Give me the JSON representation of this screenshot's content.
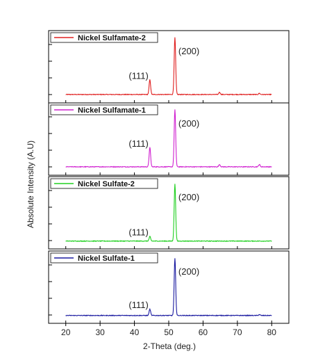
{
  "chart_data": {
    "type": "line",
    "xlabel": "2-Theta (deg.)",
    "ylabel": "Absolute Intensity (A.U)",
    "xlim": [
      15,
      85
    ],
    "x_ticks": [
      20,
      30,
      40,
      50,
      60,
      70,
      80
    ],
    "grid": false,
    "legend_placement": "top-left",
    "panels": [
      {
        "series_name": "Nickel Sulfamate-2",
        "color": "#e02020",
        "ylim": [
          0,
          1
        ],
        "baseline": 0.05,
        "peaks": [
          {
            "label": "(111)",
            "x": 44.5,
            "height": 0.26
          },
          {
            "label": "(200)",
            "x": 51.8,
            "height": 1.0
          }
        ],
        "minor_peaks": [
          {
            "x": 64.8,
            "height": 0.04
          },
          {
            "x": 76.4,
            "height": 0.02
          }
        ]
      },
      {
        "series_name": "Nickel Sulfamate-1",
        "color": "#d020d0",
        "ylim": [
          0,
          1
        ],
        "baseline": 0.05,
        "peaks": [
          {
            "label": "(111)",
            "x": 44.5,
            "height": 0.34
          },
          {
            "label": "(200)",
            "x": 51.8,
            "height": 1.0
          }
        ],
        "minor_peaks": [
          {
            "x": 64.8,
            "height": 0.04
          },
          {
            "x": 76.4,
            "height": 0.04
          }
        ]
      },
      {
        "series_name": "Nickel Sulfate-2",
        "color": "#20d020",
        "ylim": [
          0,
          1
        ],
        "baseline": 0.04,
        "peaks": [
          {
            "label": "(111)",
            "x": 44.5,
            "height": 0.08
          },
          {
            "label": "(200)",
            "x": 51.8,
            "height": 1.0
          }
        ],
        "minor_peaks": []
      },
      {
        "series_name": "Nickel Sulfate-1",
        "color": "#1a1aa0",
        "ylim": [
          0,
          1
        ],
        "baseline": 0.04,
        "peaks": [
          {
            "label": "(111)",
            "x": 44.5,
            "height": 0.11
          },
          {
            "label": "(200)",
            "x": 51.8,
            "height": 1.0
          }
        ],
        "minor_peaks": [
          {
            "x": 76.4,
            "height": 0.015
          }
        ]
      }
    ]
  }
}
